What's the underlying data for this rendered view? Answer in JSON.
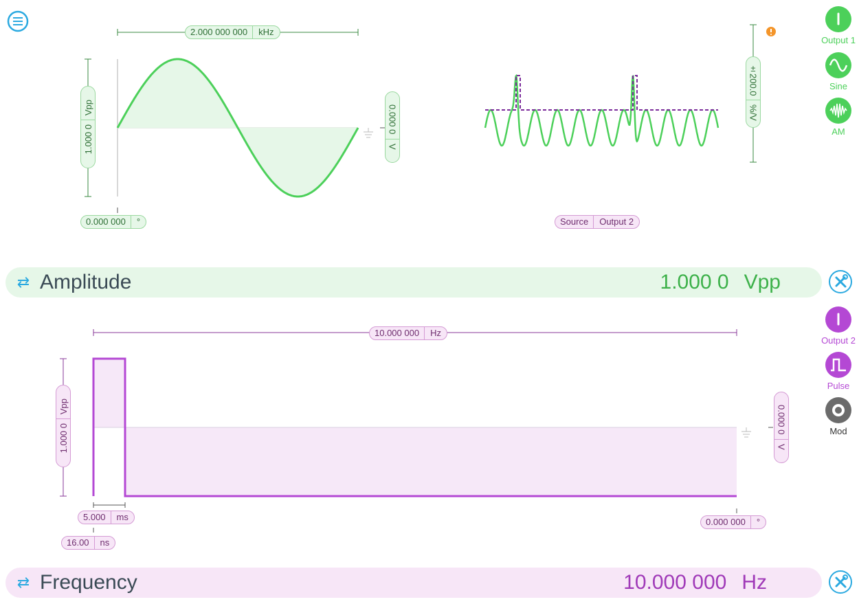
{
  "menu": {
    "icon": "menu-icon"
  },
  "channel1": {
    "frequency_pill": {
      "value": "2.000 000 000",
      "unit": "kHz"
    },
    "amplitude_pill": {
      "value": "1.000 0",
      "unit": "Vpp"
    },
    "offset_pill": {
      "value": "0.000 0",
      "unit": "V"
    },
    "phase_pill": {
      "value": "0.000 000",
      "unit": "°"
    },
    "modulation_pill": {
      "value": "±200.0",
      "unit": "%/V"
    },
    "source_pill": {
      "label": "Source",
      "value": "Output 2"
    },
    "output_button": {
      "label": "Output 1"
    },
    "waveform_button": {
      "label": "Sine"
    },
    "mod_button": {
      "label": "AM"
    },
    "color": "#4cd05a"
  },
  "amplitude_bar": {
    "label": "Amplitude",
    "value": "1.000 0",
    "unit": "Vpp"
  },
  "channel2": {
    "frequency_pill": {
      "value": "10.000 000",
      "unit": "Hz"
    },
    "amplitude_pill": {
      "value": "1.000 0",
      "unit": "Vpp"
    },
    "offset_pill": {
      "value": "0.000 0",
      "unit": "V"
    },
    "width_pill": {
      "value": "5.000",
      "unit": "ms"
    },
    "edge_pill": {
      "value": "16.00",
      "unit": "ns"
    },
    "phase_pill": {
      "value": "0.000 000",
      "unit": "°"
    },
    "output_button": {
      "label": "Output 2"
    },
    "waveform_button": {
      "label": "Pulse"
    },
    "mod_button": {
      "label": "Mod"
    },
    "color": "#b448d4"
  },
  "frequency_bar": {
    "label": "Frequency",
    "value": "10.000 000",
    "unit": "Hz"
  }
}
